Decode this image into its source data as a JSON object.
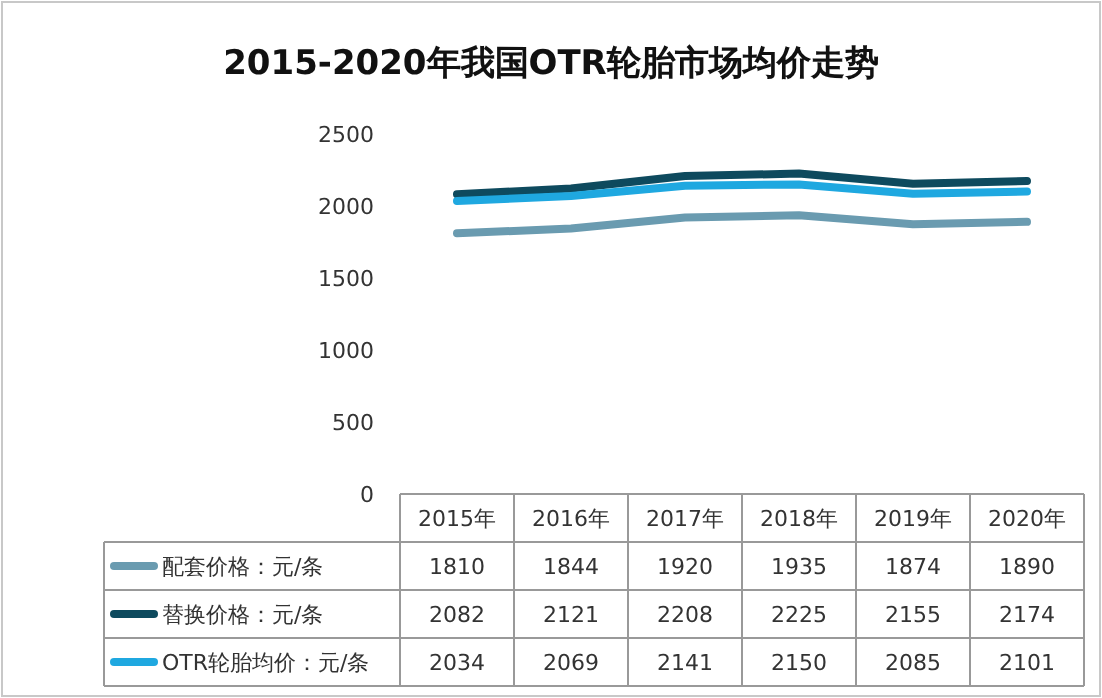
{
  "chart_data": {
    "type": "line",
    "title": "2015-2020年我国OTR轮胎市场均价走势",
    "categories": [
      "2015年",
      "2016年",
      "2017年",
      "2018年",
      "2019年",
      "2020年"
    ],
    "series": [
      {
        "name": "配套价格：元/条",
        "color": "#6a9bb0",
        "values": [
          1810,
          1844,
          1920,
          1935,
          1874,
          1890
        ]
      },
      {
        "name": "替换价格：元/条",
        "color": "#0e4a5e",
        "values": [
          2082,
          2121,
          2208,
          2225,
          2155,
          2174
        ]
      },
      {
        "name": "OTR轮胎均价：元/条",
        "color": "#1fa8e0",
        "values": [
          2034,
          2069,
          2141,
          2150,
          2085,
          2101
        ]
      }
    ],
    "ylim": [
      0,
      2500
    ],
    "yticks": [
      0,
      500,
      1000,
      1500,
      2000,
      2500
    ],
    "data_labels": true,
    "legend": "bottom",
    "line_style": "solid"
  }
}
